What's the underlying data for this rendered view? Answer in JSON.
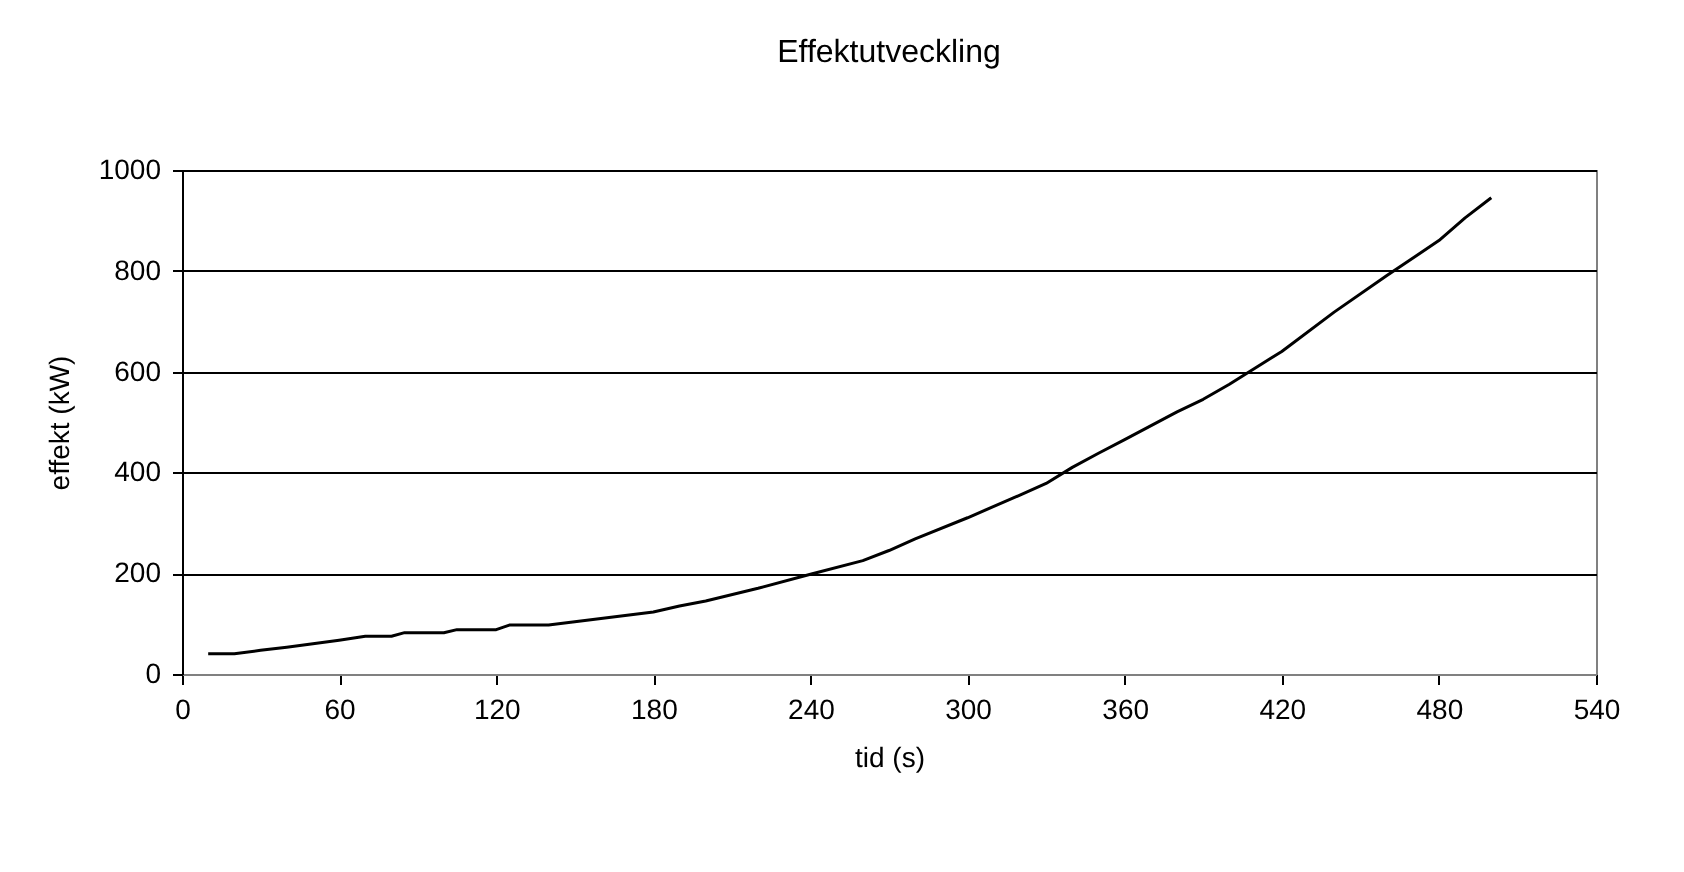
{
  "chart_data": {
    "type": "line",
    "title": "Effektutveckling",
    "xlabel": "tid (s)",
    "ylabel": "effekt (kW)",
    "x": [
      10,
      20,
      30,
      40,
      50,
      60,
      70,
      80,
      85,
      100,
      105,
      120,
      125,
      140,
      160,
      180,
      190,
      200,
      220,
      240,
      260,
      270,
      280,
      300,
      320,
      330,
      340,
      350,
      360,
      380,
      390,
      400,
      420,
      440,
      460,
      480,
      490,
      500
    ],
    "series": [
      {
        "color": "#000000",
        "values": [
          40,
          40,
          47,
          53,
          60,
          67,
          75,
          75,
          82,
          82,
          88,
          88,
          97,
          97,
          110,
          123,
          135,
          145,
          170,
          198,
          225,
          245,
          268,
          310,
          355,
          378,
          410,
          438,
          465,
          520,
          545,
          575,
          640,
          718,
          790,
          860,
          905,
          945
        ]
      }
    ],
    "xlim": [
      0,
      540
    ],
    "xticks": [
      0,
      60,
      120,
      180,
      240,
      300,
      360,
      420,
      480,
      540
    ],
    "ylim": [
      0,
      1000
    ],
    "yticks": [
      0,
      200,
      400,
      600,
      800,
      1000
    ],
    "grid": "y",
    "marker": "none",
    "line_style": "solid"
  }
}
